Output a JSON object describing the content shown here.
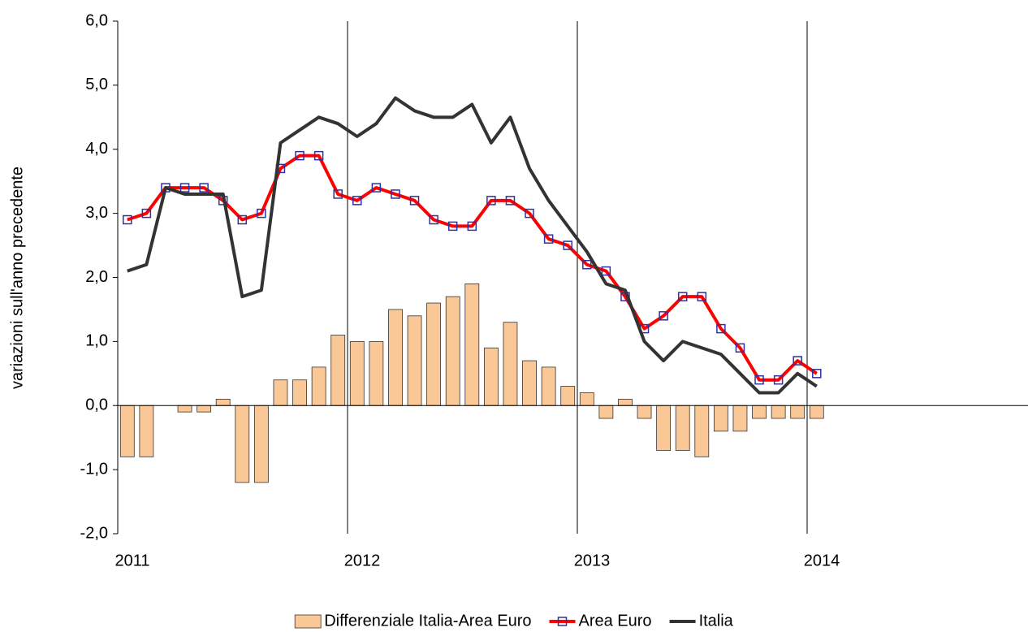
{
  "chart_data": {
    "type": "combo",
    "y_label": "variazioni sull'anno precedente",
    "categories": [
      null,
      null,
      null,
      null,
      null,
      null,
      null,
      null,
      null,
      null,
      null,
      null,
      null,
      null,
      null,
      null,
      null,
      null,
      null,
      null,
      null,
      null,
      null,
      null,
      null,
      null,
      null,
      null,
      null,
      null,
      null,
      null,
      null,
      null,
      null,
      null,
      null
    ],
    "xticks": [
      2011,
      2012,
      2013,
      2014
    ],
    "ylim": [
      -2,
      6
    ],
    "yticks": [
      {
        "value": -2,
        "label": "-2,0"
      },
      {
        "value": -1,
        "label": "-1,0"
      },
      {
        "value": 0,
        "label": "0,0"
      },
      {
        "value": 1,
        "label": "1,0"
      },
      {
        "value": 2,
        "label": "2,0"
      },
      {
        "value": 3,
        "label": "3,0"
      },
      {
        "value": 4,
        "label": "4,0"
      },
      {
        "value": 5,
        "label": "5,0"
      },
      {
        "value": 6,
        "label": "6,0"
      }
    ],
    "legend": "bottom",
    "series": [
      {
        "name": "Differenziale Italia-Area Euro",
        "type": "bar",
        "color": "#fac896",
        "values": [
          -0.8,
          -0.8,
          0,
          -0.1,
          -0.1,
          0.1,
          -1.2,
          -1.2,
          0.4,
          0.4,
          0.6,
          1.1,
          1.0,
          1.0,
          1.5,
          1.4,
          1.6,
          1.7,
          1.9,
          0.9,
          1.3,
          0.7,
          0.6,
          0.3,
          0.2,
          -0.2,
          0.1,
          -0.2,
          -0.7,
          -0.7,
          -0.8,
          -0.4,
          -0.4,
          -0.2,
          -0.2,
          -0.2,
          -0.2
        ]
      },
      {
        "name": "Area Euro",
        "type": "line",
        "marker": "square",
        "color": "#ff0000",
        "marker_color": "#3030a0",
        "values": [
          2.9,
          3.0,
          3.4,
          3.4,
          3.4,
          3.2,
          2.9,
          3.0,
          3.7,
          3.9,
          3.9,
          3.3,
          3.2,
          3.4,
          3.3,
          3.2,
          2.9,
          2.8,
          2.8,
          3.2,
          3.2,
          3.0,
          2.6,
          2.5,
          2.2,
          2.1,
          1.7,
          1.2,
          1.4,
          1.7,
          1.7,
          1.2,
          0.9,
          0.4,
          0.4,
          0.7,
          0.5
        ]
      },
      {
        "name": "Italia",
        "type": "line",
        "color": "#333333",
        "values": [
          2.1,
          2.2,
          3.4,
          3.3,
          3.3,
          3.3,
          1.7,
          1.8,
          4.1,
          4.3,
          4.5,
          4.4,
          4.2,
          4.4,
          4.8,
          4.6,
          4.5,
          4.5,
          4.7,
          4.1,
          4.5,
          3.7,
          3.2,
          2.8,
          2.4,
          1.9,
          1.8,
          1.0,
          0.7,
          1.0,
          0.9,
          0.8,
          0.5,
          0.2,
          0.2,
          0.5,
          0.3
        ]
      }
    ]
  }
}
